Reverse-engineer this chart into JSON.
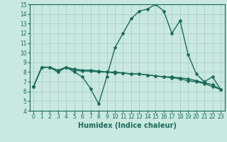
{
  "xlabel": "Humidex (Indice chaleur)",
  "x": [
    0,
    1,
    2,
    3,
    4,
    5,
    6,
    7,
    8,
    9,
    10,
    11,
    12,
    13,
    14,
    15,
    16,
    17,
    18,
    19,
    20,
    21,
    22,
    23
  ],
  "line1": [
    6.5,
    8.5,
    8.5,
    8.0,
    8.5,
    8.0,
    7.5,
    6.3,
    4.7,
    7.5,
    10.5,
    12.0,
    13.5,
    14.3,
    14.5,
    15.0,
    14.3,
    12.0,
    13.3,
    9.8,
    7.8,
    7.0,
    7.5,
    6.2
  ],
  "line2": [
    6.5,
    8.5,
    8.5,
    8.2,
    8.5,
    8.3,
    8.2,
    8.2,
    8.1,
    8.0,
    8.0,
    7.9,
    7.8,
    7.8,
    7.7,
    7.6,
    7.5,
    7.4,
    7.3,
    7.1,
    7.0,
    6.8,
    6.5,
    6.2
  ],
  "line3": [
    6.5,
    8.5,
    8.5,
    8.0,
    8.5,
    8.2,
    8.1,
    8.1,
    8.0,
    8.0,
    7.9,
    7.9,
    7.8,
    7.8,
    7.7,
    7.6,
    7.5,
    7.5,
    7.4,
    7.3,
    7.1,
    6.9,
    6.7,
    6.2
  ],
  "line_color": "#1a6b5a",
  "bg_color": "#c8e8e0",
  "grid_color": "#a8ccc6",
  "ylim": [
    4,
    15
  ],
  "xlim": [
    -0.5,
    23.5
  ],
  "yticks": [
    4,
    5,
    6,
    7,
    8,
    9,
    10,
    11,
    12,
    13,
    14,
    15
  ],
  "xticks": [
    0,
    1,
    2,
    3,
    4,
    5,
    6,
    7,
    8,
    9,
    10,
    11,
    12,
    13,
    14,
    15,
    16,
    17,
    18,
    19,
    20,
    21,
    22,
    23
  ],
  "marker": "*",
  "linewidth": 1.0,
  "markersize": 3,
  "label_fontsize": 7,
  "tick_fontsize": 5.5
}
